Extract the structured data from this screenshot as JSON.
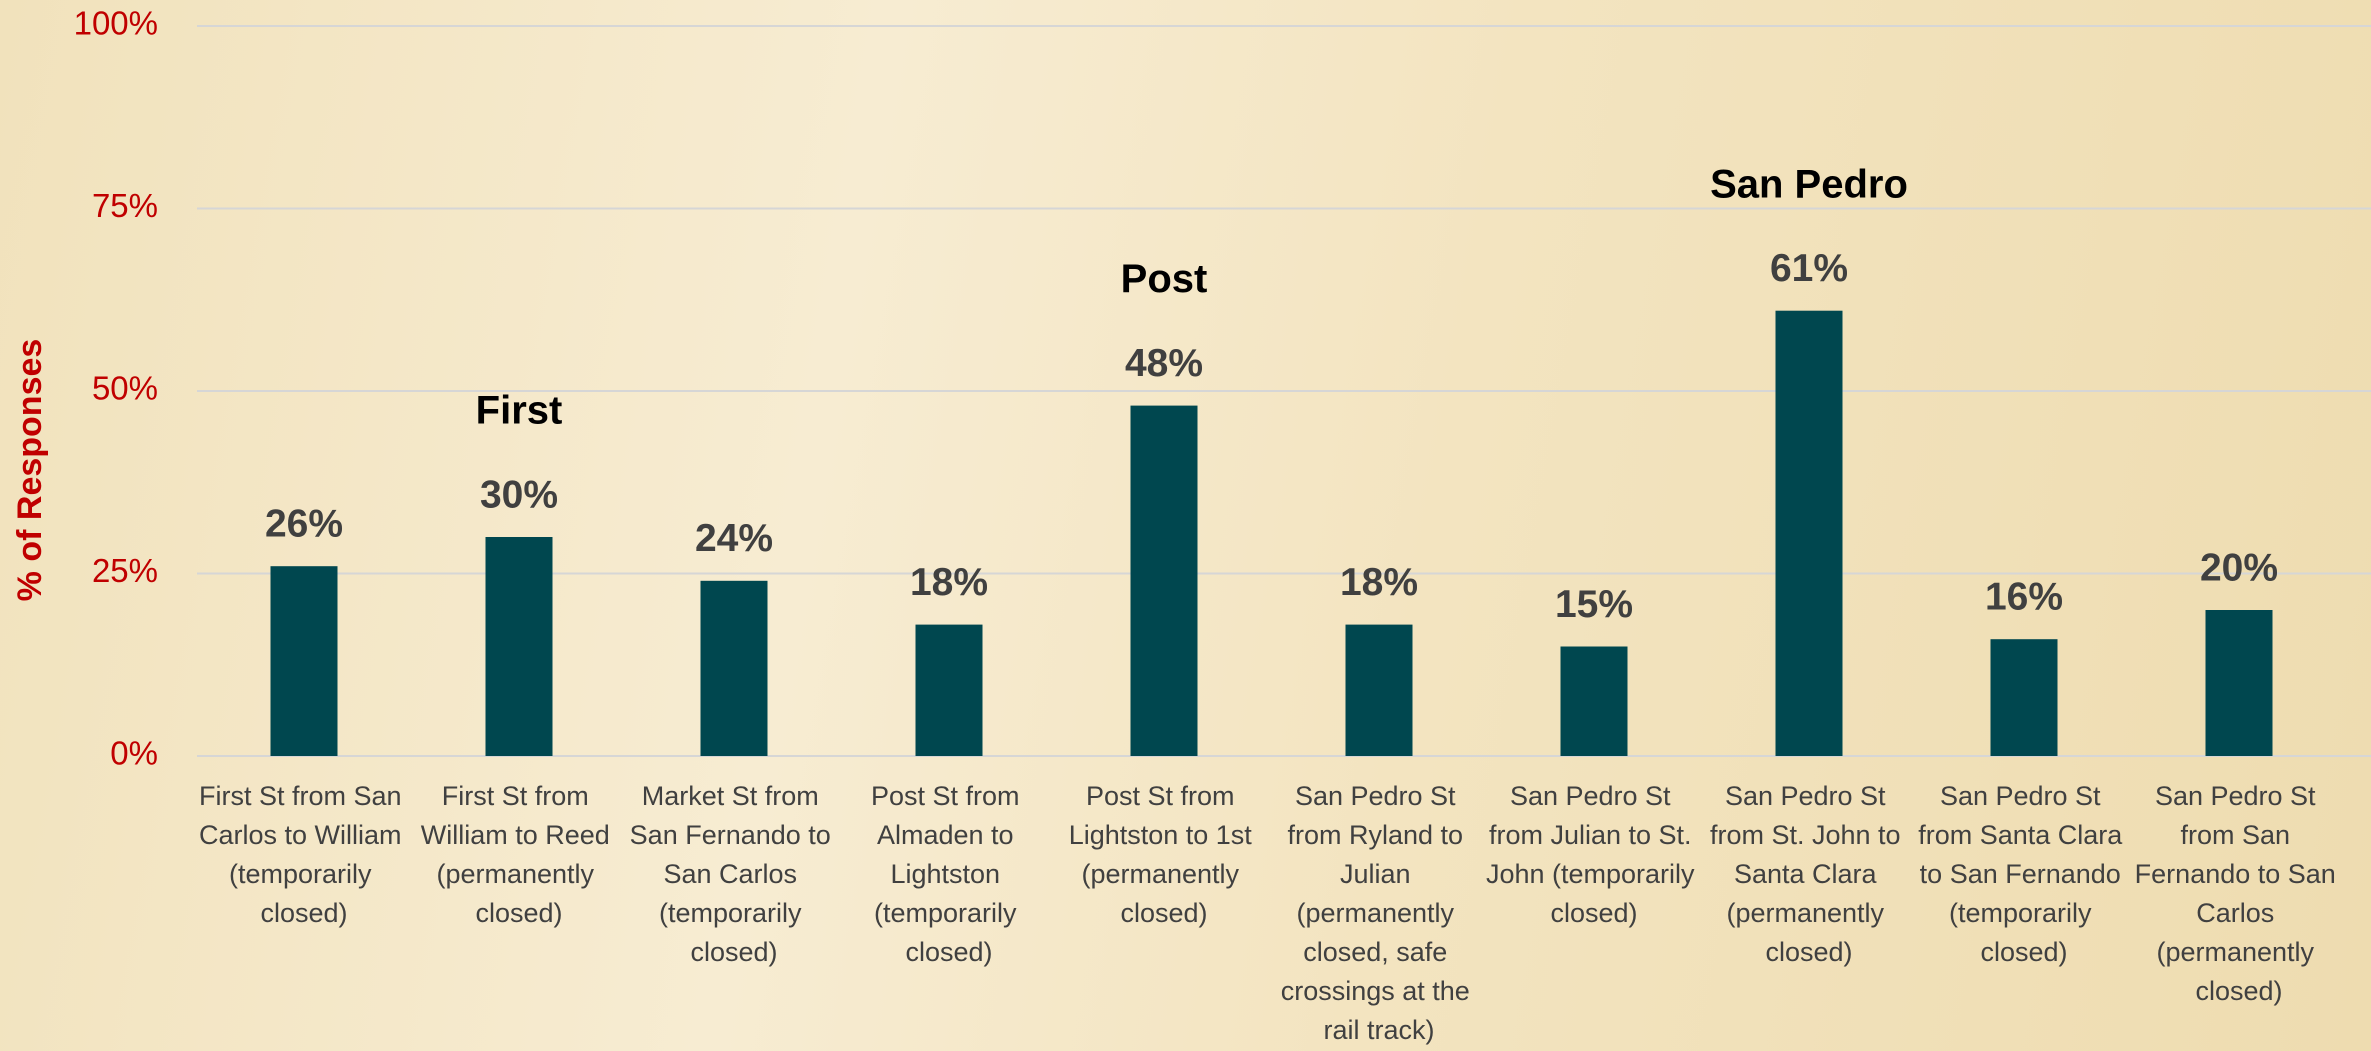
{
  "chart_data": {
    "type": "bar",
    "y_axis_label": "% of Responses",
    "categories": [
      "First St from San Carlos to William (temporarily closed)",
      "First St from William to Reed (permanently closed)",
      "Market St from San Fernando to San Carlos (temporarily closed)",
      "Post St from Almaden to Lightston (temporarily closed)",
      "Post St from Lightston to 1st (permanently closed)",
      "San Pedro St from Ryland to Julian (permanently closed, safe crossings at the rail track)",
      "San Pedro St from Julian to St. John (temporarily closed)",
      "San Pedro St from St. John to Santa Clara (permanently closed)",
      "San Pedro St from Santa Clara to San Fernando (temporarily closed)",
      "San Pedro St from San Fernando to San Carlos (permanently closed)"
    ],
    "values": [
      26,
      30,
      24,
      18,
      48,
      18,
      15,
      61,
      16,
      20
    ],
    "value_labels": [
      "26%",
      "30%",
      "24%",
      "18%",
      "48%",
      "18%",
      "15%",
      "61%",
      "16%",
      "20%"
    ],
    "color": "#00474f",
    "ylim": [
      0,
      100
    ],
    "yticks": [
      {
        "value": 0,
        "label": "0%"
      },
      {
        "value": 25,
        "label": "25%"
      },
      {
        "value": 50,
        "label": "50%"
      },
      {
        "value": 75,
        "label": "75%"
      },
      {
        "value": 100,
        "label": "100%"
      }
    ],
    "grid": true,
    "annotations": [
      {
        "text": "First",
        "category": "First St from William to Reed (permanently closed)"
      },
      {
        "text": "Post",
        "category": "Post St from Lightston to 1st (permanently closed)"
      },
      {
        "text": "San Pedro",
        "category": "San Pedro St from St. John to Santa Clara (permanently closed)"
      }
    ]
  }
}
